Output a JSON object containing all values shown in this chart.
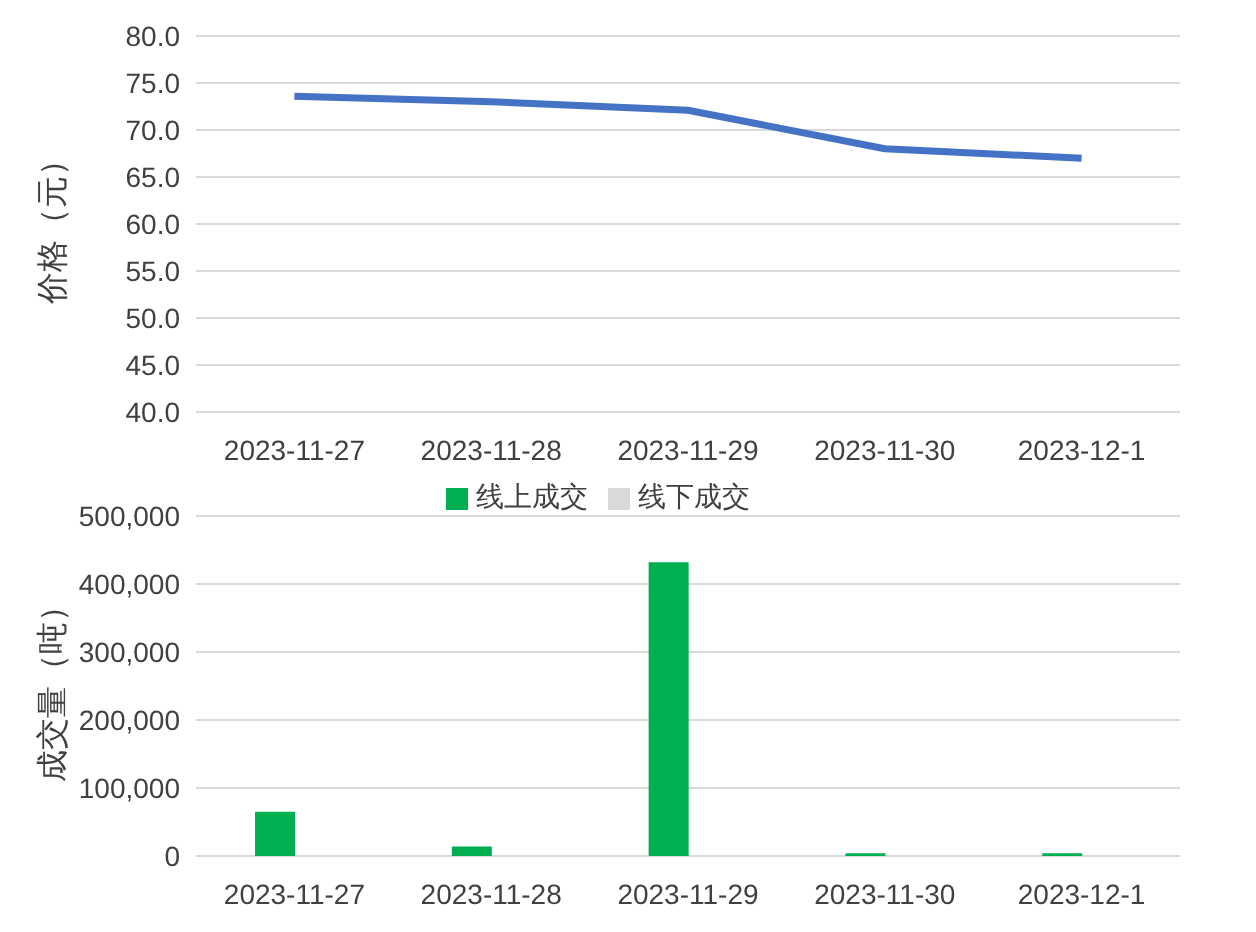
{
  "chart_data": [
    {
      "type": "line",
      "ylabel": "价格（元）",
      "categories": [
        "2023-11-27",
        "2023-11-28",
        "2023-11-29",
        "2023-11-30",
        "2023-12-1"
      ],
      "series": [
        {
          "color": "#4472c4",
          "values": [
            73.6,
            73.0,
            72.1,
            68.0,
            67.0
          ]
        }
      ],
      "ylim": [
        40,
        80
      ],
      "yticks": [
        {
          "value": 40,
          "label": "40.0"
        },
        {
          "value": 45,
          "label": "45.0"
        },
        {
          "value": 50,
          "label": "50.0"
        },
        {
          "value": 55,
          "label": "55.0"
        },
        {
          "value": 60,
          "label": "60.0"
        },
        {
          "value": 65,
          "label": "65.0"
        },
        {
          "value": 70,
          "label": "70.0"
        },
        {
          "value": 75,
          "label": "75.0"
        },
        {
          "value": 80,
          "label": "80.0"
        }
      ],
      "grid": "y",
      "legend": false,
      "marker": "none",
      "line_style": "solid"
    },
    {
      "type": "bar",
      "ylabel": "成交量（吨）",
      "categories": [
        "2023-11-27",
        "2023-11-28",
        "2023-11-29",
        "2023-11-30",
        "2023-12-1"
      ],
      "series": [
        {
          "name": "线上成交",
          "color": "#00b050",
          "values": [
            65000,
            14000,
            432000,
            4000,
            4000
          ]
        },
        {
          "name": "线下成交",
          "color": "#d9d9d9",
          "values": [
            null,
            null,
            null,
            null,
            null
          ]
        }
      ],
      "ylim": [
        0,
        500000
      ],
      "yticks": [
        0,
        {
          "value": 100000,
          "label": "100,000"
        },
        {
          "value": 200000,
          "label": "200,000"
        },
        {
          "value": 300000,
          "label": "300,000"
        },
        {
          "value": 400000,
          "label": "400,000"
        },
        {
          "value": 500000,
          "label": "500,000"
        }
      ],
      "grid": "y",
      "legend": "top"
    }
  ]
}
